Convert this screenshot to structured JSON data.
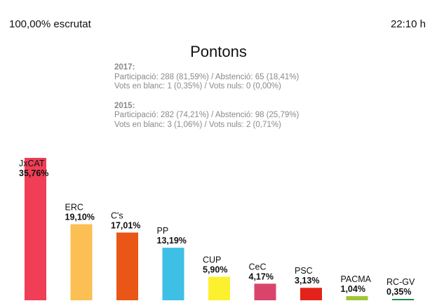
{
  "header": {
    "scrutiny": "100,00% escrutat",
    "time": "22:10 h",
    "title": "Pontons"
  },
  "stats": {
    "y2017": {
      "year": "2017:",
      "line1": "Participació: 288 (81,59%) / Abstenció: 65 (18,41%)",
      "line2": "Vots en blanc: 1 (0,35%) / Vots nuls: 0 (0,00%)"
    },
    "y2015": {
      "year": "2015:",
      "line1": "Participació: 282 (74,21%) / Abstenció: 98 (25,79%)",
      "line2": "Vots en blanc: 3 (1,06%) / Vots nuls: 2 (0,71%)"
    }
  },
  "chart_data": {
    "type": "bar",
    "title": "Pontons",
    "categories": [
      "JxCAT",
      "ERC",
      "C's",
      "PP",
      "CUP",
      "CeC",
      "PSC",
      "PACMA",
      "RC-GV"
    ],
    "values": [
      35.76,
      19.1,
      17.01,
      13.19,
      5.9,
      4.17,
      3.13,
      1.04,
      0.35
    ],
    "labels": [
      "35,76%",
      "19,10%",
      "17,01%",
      "13,19%",
      "5,90%",
      "4,17%",
      "3,13%",
      "1,04%",
      "0,35%"
    ],
    "colors": [
      "#ef3e55",
      "#fbbf53",
      "#ea5616",
      "#3ebfe6",
      "#fdf02f",
      "#d9456a",
      "#e3231b",
      "#a2c43a",
      "#1f8a4a"
    ],
    "ylim": [
      0,
      35.76
    ]
  }
}
